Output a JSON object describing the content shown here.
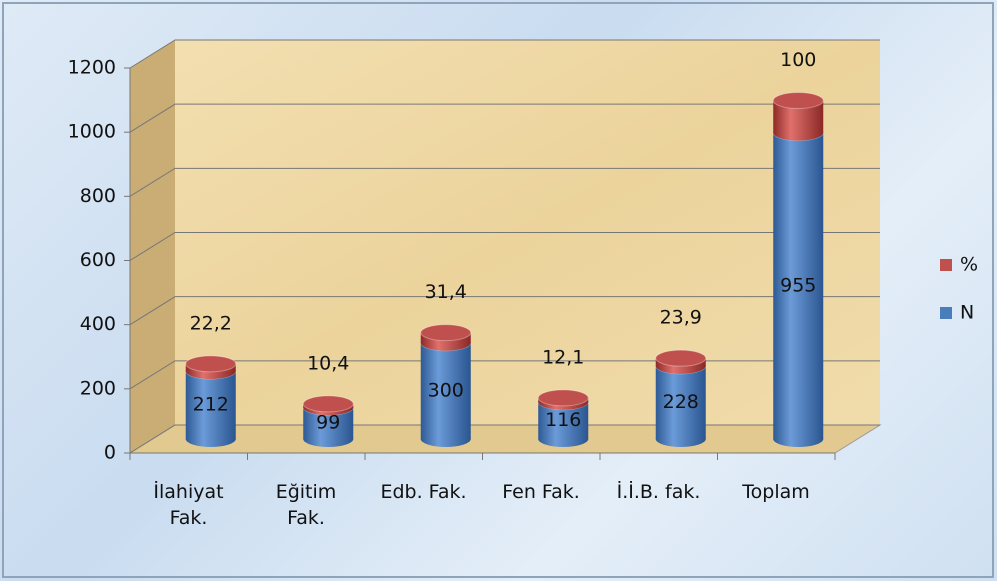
{
  "chart_data": {
    "type": "bar",
    "categories": [
      "İlahiyat\nFak.",
      "Eğitim\nFak.",
      "Edb. Fak.",
      "Fen Fak.",
      "İ.İ.B. fak.",
      "Toplam"
    ],
    "series": [
      {
        "name": "N",
        "color": "#4a7ebb",
        "values": [
          212,
          99,
          300,
          116,
          228,
          955
        ]
      },
      {
        "name": "%",
        "color": "#c0504d",
        "values": [
          22.2,
          10.4,
          31.4,
          12.1,
          23.9,
          100
        ],
        "value_labels": [
          "22,2",
          "10,4",
          "31,4",
          "12,1",
          "23,9",
          "100"
        ]
      }
    ],
    "stacked": true,
    "ylim": [
      0,
      1200
    ],
    "yticks": [
      0,
      200,
      400,
      600,
      800,
      1000,
      1200
    ],
    "grid": true,
    "legend": "right"
  }
}
